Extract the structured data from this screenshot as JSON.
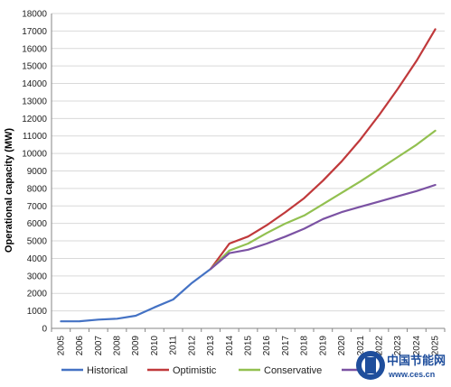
{
  "chart_data": {
    "type": "line",
    "title": "",
    "xlabel": "",
    "ylabel": "Operational capacity (MW)",
    "ylim": [
      0,
      18000
    ],
    "ytick_step": 1000,
    "grid": true,
    "legend_position": "bottom",
    "categories": [
      "2005",
      "2006",
      "2007",
      "2008",
      "2009",
      "2010",
      "2011",
      "2012",
      "2013",
      "2014",
      "2015",
      "2016",
      "2017",
      "2018",
      "2019",
      "2020",
      "2021",
      "2022",
      "2023",
      "2024",
      "2025"
    ],
    "series": [
      {
        "name": "Historical",
        "color": "#4472C4",
        "values": [
          400,
          410,
          500,
          550,
          720,
          1200,
          1650,
          2600,
          3400,
          null,
          null,
          null,
          null,
          null,
          null,
          null,
          null,
          null,
          null,
          null,
          null
        ]
      },
      {
        "name": "Optimistic",
        "color": "#C0393B",
        "values": [
          null,
          null,
          null,
          null,
          null,
          null,
          null,
          null,
          3400,
          4850,
          5250,
          5900,
          6650,
          7450,
          8450,
          9550,
          10800,
          12200,
          13700,
          15300,
          17100
        ]
      },
      {
        "name": "Conservative",
        "color": "#92C050",
        "values": [
          null,
          null,
          null,
          null,
          null,
          null,
          null,
          null,
          3400,
          4450,
          4850,
          5450,
          6000,
          6450,
          7100,
          7750,
          8400,
          9100,
          9800,
          10500,
          11300
        ]
      },
      {
        "name": "",
        "color": "#7B52A3",
        "values": [
          null,
          null,
          null,
          null,
          null,
          null,
          null,
          null,
          3400,
          4300,
          4500,
          4850,
          5250,
          5700,
          6250,
          6650,
          6950,
          7250,
          7550,
          7850,
          8200
        ]
      }
    ]
  },
  "watermark": {
    "logo_text": "中国节能网",
    "url": "www.ces.cn"
  }
}
